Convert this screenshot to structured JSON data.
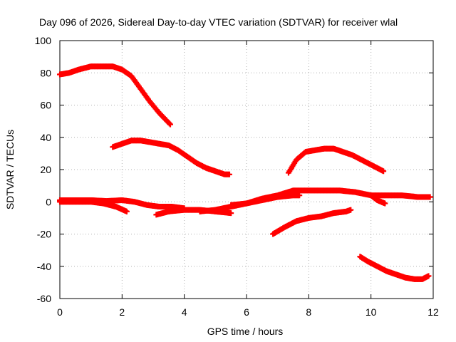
{
  "chart_data": {
    "type": "scatter",
    "title": "Day 096 of 2026, Sidereal Day-to-day VTEC variation (SDTVAR) for receiver wlal",
    "xlabel": "GPS time / hours",
    "ylabel": "SDTVAR / TECUs",
    "xlim": [
      0,
      12
    ],
    "ylim": [
      -60,
      100
    ],
    "x_ticks": [
      0,
      2,
      4,
      6,
      8,
      10,
      12
    ],
    "y_ticks": [
      -60,
      -40,
      -20,
      0,
      20,
      40,
      60,
      80,
      100
    ],
    "x_tick_labels": [
      "0",
      "2",
      "4",
      "6",
      "8",
      "10",
      "12"
    ],
    "y_tick_labels": [
      "-60",
      "-40",
      "-20",
      "0",
      "20",
      "40",
      "60",
      "80",
      "100"
    ],
    "grid": true,
    "marker_color": "#ff0000",
    "series": [
      {
        "x": [
          0.0,
          0.3,
          0.6,
          1.0,
          1.4,
          1.7,
          2.0,
          2.3,
          2.6,
          2.9,
          3.2,
          3.55
        ],
        "y": [
          79,
          80,
          82,
          84,
          84,
          84,
          82,
          78,
          70,
          62,
          55,
          48
        ]
      },
      {
        "x": [
          1.7,
          2.0,
          2.3,
          2.6,
          2.9,
          3.2,
          3.5,
          3.8,
          4.1,
          4.4,
          4.7,
          5.0,
          5.3,
          5.45
        ],
        "y": [
          34,
          36,
          38,
          38,
          37,
          36,
          35,
          32,
          28,
          24,
          21,
          19,
          17,
          17
        ]
      },
      {
        "x": [
          0.0,
          0.5,
          1.0,
          1.5,
          2.0,
          2.4,
          2.8,
          3.2,
          3.6,
          4.0
        ],
        "y": [
          1,
          1,
          1,
          0.5,
          1,
          0,
          -2,
          -3,
          -3,
          -4
        ]
      },
      {
        "x": [
          0.0,
          0.5,
          1.0,
          1.4,
          1.8,
          2.15
        ],
        "y": [
          0,
          0,
          0,
          -1,
          -3,
          -6
        ]
      },
      {
        "x": [
          3.1,
          3.5,
          4.0,
          4.5,
          5.0,
          5.5
        ],
        "y": [
          -8,
          -6,
          -5,
          -5,
          -6,
          -7
        ]
      },
      {
        "x": [
          4.5,
          5.0,
          5.5,
          6.0,
          6.5,
          7.0,
          7.5,
          7.7
        ],
        "y": [
          -6,
          -5,
          -3,
          -1,
          1,
          3,
          4,
          4
        ]
      },
      {
        "x": [
          5.5,
          6.0,
          6.5,
          7.0,
          7.5,
          8.0,
          8.5,
          9.0,
          9.5,
          10.0,
          10.5,
          11.0,
          11.5,
          11.9
        ],
        "y": [
          -2,
          -1,
          2,
          4,
          7,
          7,
          7,
          7,
          6,
          4,
          4,
          4,
          3,
          3
        ]
      },
      {
        "x": [
          7.35,
          7.6,
          7.9,
          8.2,
          8.5,
          8.8,
          9.1,
          9.4,
          9.7,
          10.0,
          10.4
        ],
        "y": [
          18,
          26,
          31,
          32,
          33,
          33,
          31,
          29,
          26,
          23,
          19
        ]
      },
      {
        "x": [
          6.85,
          7.2,
          7.6,
          8.0,
          8.4,
          8.8,
          9.2,
          9.35
        ],
        "y": [
          -20,
          -16,
          -12,
          -10,
          -9,
          -7,
          -6,
          -5
        ]
      },
      {
        "x": [
          10.0,
          10.2,
          10.45
        ],
        "y": [
          4,
          1,
          -1
        ]
      },
      {
        "x": [
          9.65,
          9.9,
          10.2,
          10.5,
          10.8,
          11.1,
          11.4,
          11.65,
          11.85
        ],
        "y": [
          -34,
          -37,
          -40,
          -43,
          -45,
          -47,
          -48,
          -48,
          -46
        ]
      }
    ]
  }
}
